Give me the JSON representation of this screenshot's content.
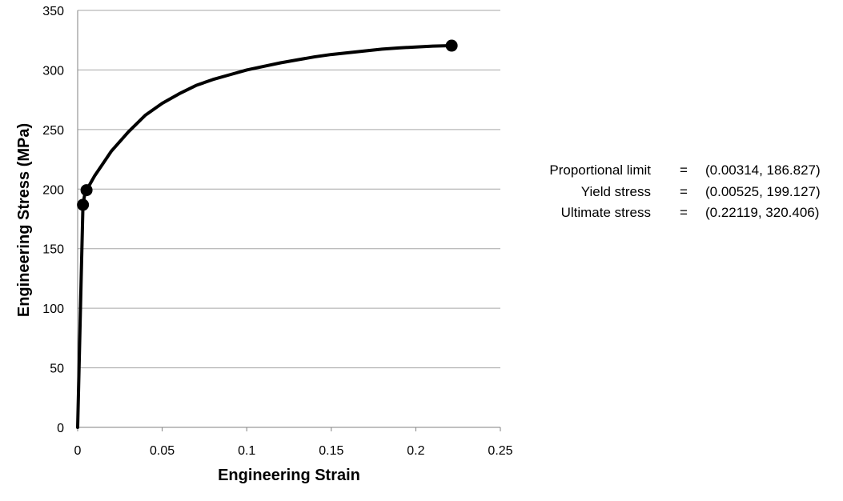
{
  "chart_data": {
    "type": "line",
    "xlabel": "Engineering Strain",
    "ylabel": "Engineering Stress (MPa)",
    "xlim": [
      0,
      0.25
    ],
    "ylim": [
      0,
      350
    ],
    "x_ticks": [
      "0",
      "0.05",
      "0.1",
      "0.15",
      "0.2",
      "0.25"
    ],
    "y_ticks": [
      "0",
      "50",
      "100",
      "150",
      "200",
      "250",
      "300",
      "350"
    ],
    "grid": "horizontal",
    "series": [
      {
        "x": [
          0,
          0.001,
          0.002,
          0.00314,
          0.004,
          0.00525,
          0.01,
          0.02,
          0.03,
          0.04,
          0.05,
          0.06,
          0.07,
          0.08,
          0.09,
          0.1,
          0.11,
          0.12,
          0.13,
          0.14,
          0.15,
          0.16,
          0.17,
          0.18,
          0.19,
          0.2,
          0.21,
          0.22119
        ],
        "y": [
          0,
          60,
          120,
          186.827,
          194,
          199.127,
          211,
          232,
          248,
          262,
          272,
          280,
          287,
          292,
          296,
          300,
          303,
          306,
          308.5,
          311,
          313,
          314.5,
          316,
          317.5,
          318.5,
          319.3,
          320,
          320.406
        ]
      }
    ],
    "markers": [
      {
        "x": 0.00314,
        "y": 186.827
      },
      {
        "x": 0.00525,
        "y": 199.127
      },
      {
        "x": 0.22119,
        "y": 320.406
      }
    ]
  },
  "annotations": [
    {
      "label": "Proportional limit",
      "eq": "=",
      "value": "(0.00314, 186.827)"
    },
    {
      "label": "Yield stress",
      "eq": "=",
      "value": "(0.00525, 199.127)"
    },
    {
      "label": "Ultimate stress",
      "eq": "=",
      "value": "(0.22119, 320.406)"
    }
  ]
}
